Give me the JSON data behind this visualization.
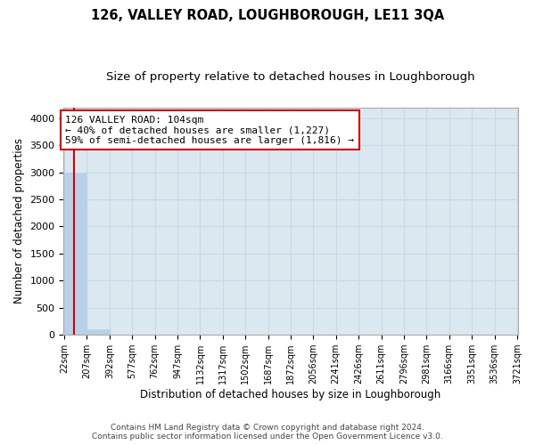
{
  "title": "126, VALLEY ROAD, LOUGHBOROUGH, LE11 3QA",
  "subtitle": "Size of property relative to detached houses in Loughborough",
  "xlabel": "Distribution of detached houses by size in Loughborough",
  "ylabel": "Number of detached properties",
  "footer1": "Contains HM Land Registry data © Crown copyright and database right 2024.",
  "footer2": "Contains public sector information licensed under the Open Government Licence v3.0.",
  "bin_edges": [
    22,
    207,
    392,
    577,
    762,
    947,
    1132,
    1317,
    1502,
    1687,
    1872,
    2056,
    2241,
    2426,
    2611,
    2796,
    2981,
    3166,
    3351,
    3536,
    3721
  ],
  "bar_heights": [
    3000,
    110,
    0,
    0,
    0,
    0,
    0,
    0,
    0,
    0,
    0,
    0,
    0,
    0,
    0,
    0,
    0,
    0,
    0,
    0
  ],
  "bar_color": "#b8d0e8",
  "bar_edgecolor": "#b8d0e8",
  "grid_color": "#c8d8e8",
  "background_color": "#dce8f0",
  "ylim": [
    0,
    4200
  ],
  "yticks": [
    0,
    500,
    1000,
    1500,
    2000,
    2500,
    3000,
    3500,
    4000
  ],
  "property_size": 104,
  "property_label": "126 VALLEY ROAD: 104sqm",
  "annotation_line1": "← 40% of detached houses are smaller (1,227)",
  "annotation_line2": "59% of semi-detached houses are larger (1,816) →",
  "vline_color": "#cc0000",
  "annotation_box_color": "#cc0000",
  "annotation_text_color": "#000000",
  "title_fontsize": 10.5,
  "subtitle_fontsize": 9.5,
  "axis_fontsize": 8.5,
  "tick_fontsize": 8
}
